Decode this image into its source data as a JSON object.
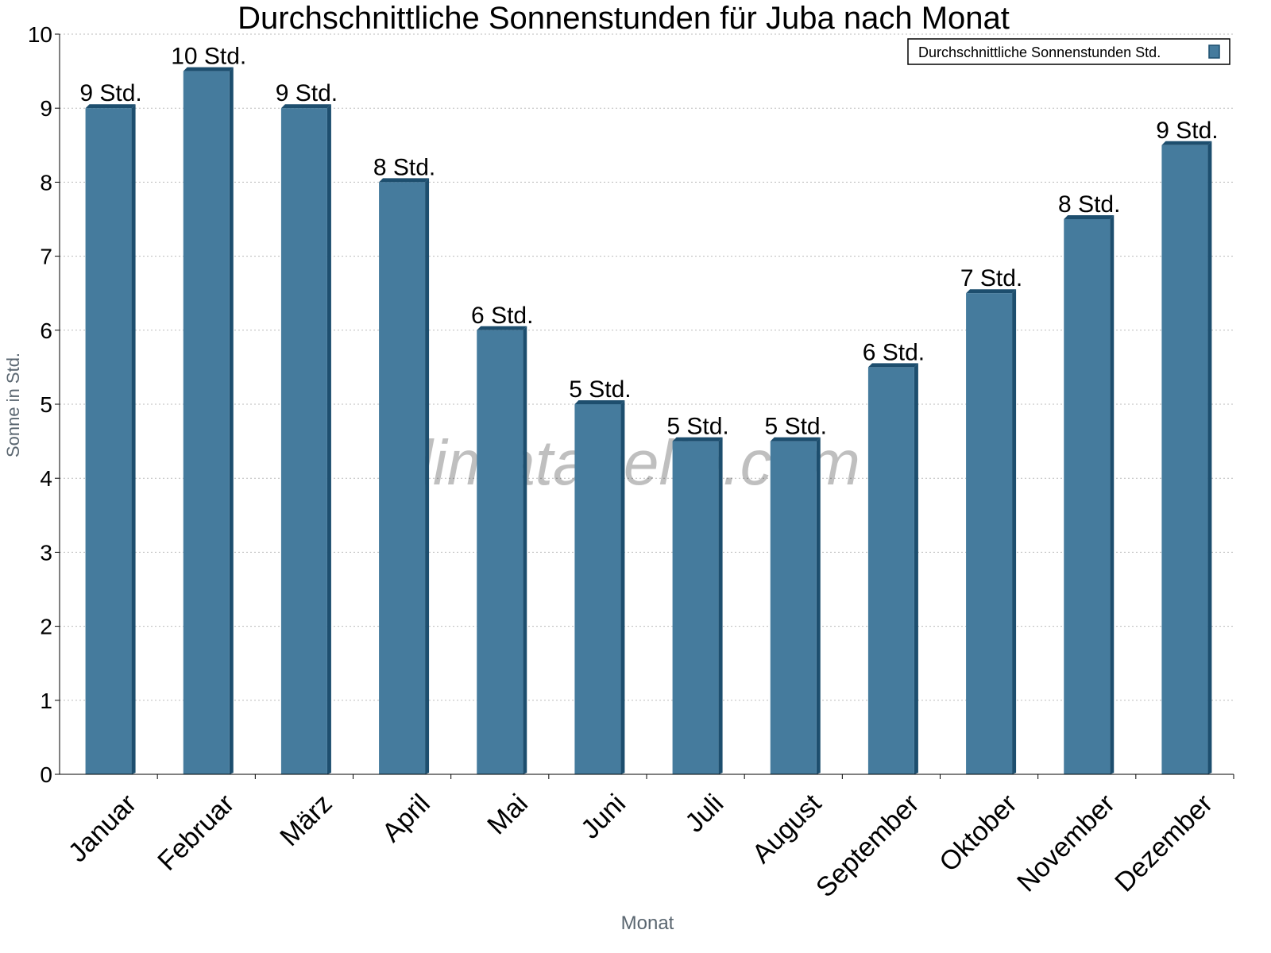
{
  "chart_data": {
    "type": "bar",
    "title": "Durchschnittliche Sonnenstunden für Juba nach Monat",
    "xlabel": "Monat",
    "ylabel": "Sonne in Std.",
    "ylim": [
      0,
      10
    ],
    "yticks": [
      0,
      1,
      2,
      3,
      4,
      5,
      6,
      7,
      8,
      9,
      10
    ],
    "grid": true,
    "legend_placement": "top-right",
    "categories": [
      "Januar",
      "Februar",
      "März",
      "April",
      "Mai",
      "Juni",
      "Juli",
      "August",
      "September",
      "Oktober",
      "November",
      "Dezember"
    ],
    "series": [
      {
        "name": "Durchschnittliche Sonnenstunden Std.",
        "values": [
          9,
          9.5,
          9,
          8,
          6,
          5,
          4.5,
          4.5,
          5.5,
          6.5,
          7.5,
          8.5
        ],
        "data_labels": [
          "9 Std.",
          "10 Std.",
          "9 Std.",
          "8 Std.",
          "6 Std.",
          "5 Std.",
          "5 Std.",
          "5 Std.",
          "6 Std.",
          "7 Std.",
          "8 Std.",
          "9 Std."
        ]
      }
    ],
    "colors": {
      "bar": "#457b9d",
      "bar_side": "#1d4e6e"
    },
    "watermark": "klimatabelle.com"
  }
}
